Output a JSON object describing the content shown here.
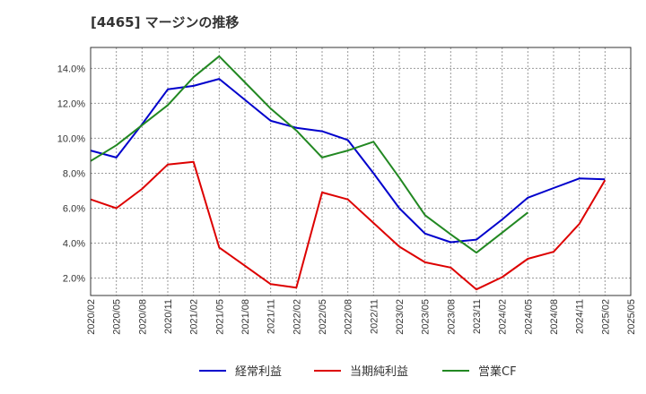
{
  "chart_data": {
    "type": "line",
    "title": "[4465]  マージンの推移",
    "x": [
      "2020/02",
      "2020/05",
      "2020/08",
      "2020/11",
      "2021/02",
      "2021/05",
      "2021/08",
      "2021/11",
      "2022/02",
      "2022/05",
      "2022/08",
      "2022/11",
      "2023/02",
      "2023/05",
      "2023/08",
      "2023/11",
      "2024/02",
      "2024/05",
      "2024/08",
      "2024/11",
      "2025/02",
      "2025/05"
    ],
    "y_ticks": [
      "2.0%",
      "4.0%",
      "6.0%",
      "8.0%",
      "10.0%",
      "12.0%",
      "14.0%"
    ],
    "ylim": [
      1.0,
      15.2
    ],
    "grid": true,
    "legend_position": "bottom",
    "series": [
      {
        "name": "経常利益",
        "color": "#0000cc",
        "values": [
          9.3,
          8.9,
          10.8,
          12.8,
          13.0,
          13.4,
          12.2,
          11.0,
          10.6,
          10.4,
          9.9,
          8.0,
          6.0,
          4.55,
          4.05,
          4.2,
          5.35,
          6.6,
          7.15,
          7.7,
          7.65,
          null
        ]
      },
      {
        "name": "当期純利益",
        "color": "#dd0000",
        "values": [
          6.5,
          6.0,
          7.1,
          8.5,
          8.65,
          3.75,
          2.7,
          1.65,
          1.45,
          6.9,
          6.5,
          5.15,
          3.8,
          2.9,
          2.6,
          1.35,
          2.05,
          3.1,
          3.5,
          5.1,
          7.6,
          null
        ]
      },
      {
        "name": "営業CF",
        "color": "#228822",
        "values": [
          8.7,
          9.6,
          10.75,
          11.9,
          13.5,
          14.7,
          13.2,
          11.7,
          10.45,
          8.9,
          9.3,
          9.8,
          7.75,
          5.6,
          4.5,
          3.45,
          4.6,
          5.75,
          null,
          null,
          null,
          null
        ]
      }
    ]
  }
}
